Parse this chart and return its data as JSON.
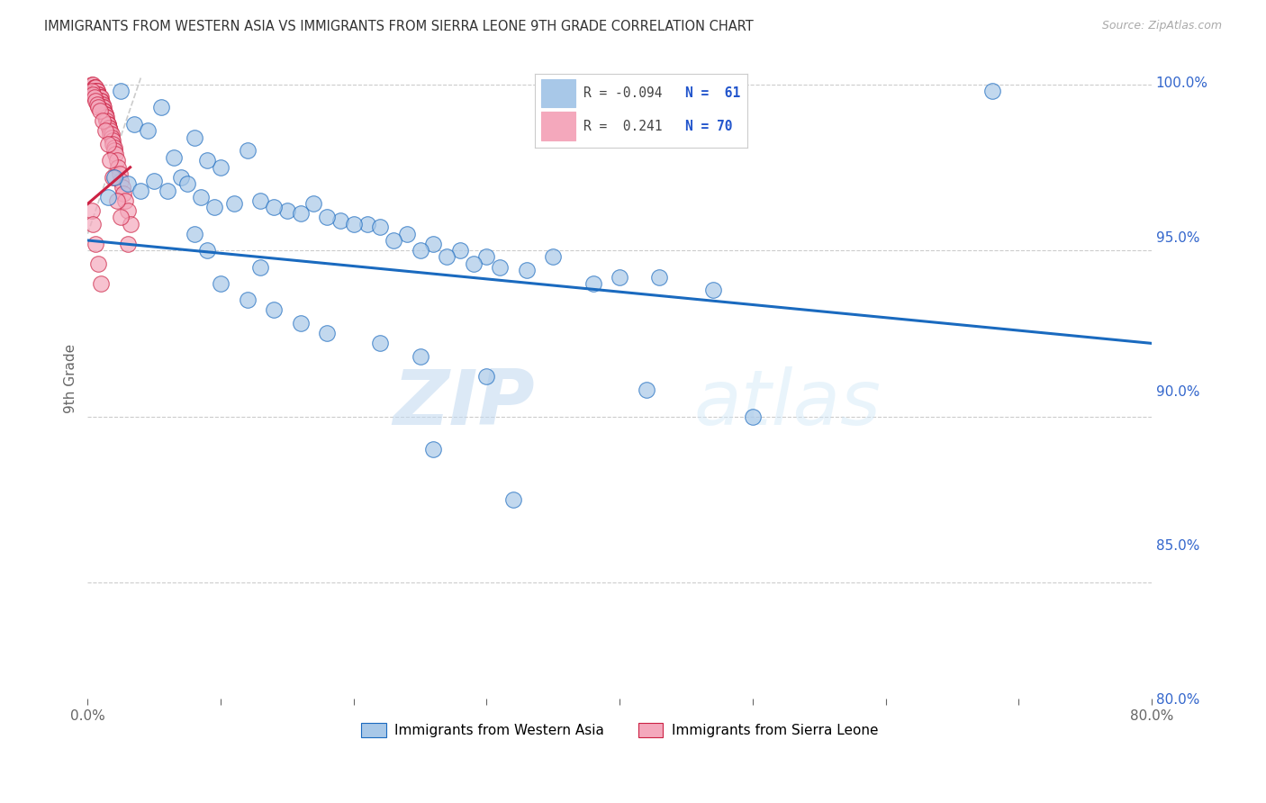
{
  "title": "IMMIGRANTS FROM WESTERN ASIA VS IMMIGRANTS FROM SIERRA LEONE 9TH GRADE CORRELATION CHART",
  "source": "Source: ZipAtlas.com",
  "ylabel": "9th Grade",
  "xlim": [
    0.0,
    0.8
  ],
  "ylim": [
    0.815,
    1.008
  ],
  "yticks": [
    0.8,
    0.85,
    0.9,
    0.95,
    1.0
  ],
  "ytick_labels": [
    "80.0%",
    "85.0%",
    "90.0%",
    "95.0%",
    "100.0%"
  ],
  "xticks": [
    0.0,
    0.1,
    0.2,
    0.3,
    0.4,
    0.5,
    0.6,
    0.7,
    0.8
  ],
  "xtick_labels": [
    "0.0%",
    "",
    "",
    "",
    "",
    "",
    "",
    "",
    "80.0%"
  ],
  "legend_blue_r": "R = -0.094",
  "legend_blue_n": "N =  61",
  "legend_pink_r": "R =  0.241",
  "legend_pink_n": "N = 70",
  "blue_color": "#a8c8e8",
  "pink_color": "#f4a8bc",
  "blue_line_color": "#1a6abf",
  "pink_line_color": "#cc2244",
  "watermark_zip": "ZIP",
  "watermark_atlas": "atlas",
  "blue_x": [
    0.025,
    0.055,
    0.035,
    0.045,
    0.08,
    0.12,
    0.1,
    0.065,
    0.09,
    0.07,
    0.03,
    0.04,
    0.02,
    0.015,
    0.05,
    0.06,
    0.075,
    0.085,
    0.095,
    0.11,
    0.13,
    0.15,
    0.17,
    0.19,
    0.21,
    0.14,
    0.16,
    0.18,
    0.2,
    0.22,
    0.24,
    0.26,
    0.28,
    0.3,
    0.23,
    0.25,
    0.27,
    0.29,
    0.31,
    0.35,
    0.33,
    0.38,
    0.4,
    0.43,
    0.47,
    0.1,
    0.12,
    0.14,
    0.16,
    0.22,
    0.25,
    0.3,
    0.42,
    0.5,
    0.68,
    0.08,
    0.09,
    0.13,
    0.18,
    0.26,
    0.32
  ],
  "blue_y": [
    0.998,
    0.993,
    0.988,
    0.986,
    0.984,
    0.98,
    0.975,
    0.978,
    0.977,
    0.972,
    0.97,
    0.968,
    0.972,
    0.966,
    0.971,
    0.968,
    0.97,
    0.966,
    0.963,
    0.964,
    0.965,
    0.962,
    0.964,
    0.959,
    0.958,
    0.963,
    0.961,
    0.96,
    0.958,
    0.957,
    0.955,
    0.952,
    0.95,
    0.948,
    0.953,
    0.95,
    0.948,
    0.946,
    0.945,
    0.948,
    0.944,
    0.94,
    0.942,
    0.942,
    0.938,
    0.94,
    0.935,
    0.932,
    0.928,
    0.922,
    0.918,
    0.912,
    0.908,
    0.9,
    0.998,
    0.955,
    0.95,
    0.945,
    0.925,
    0.89,
    0.875
  ],
  "pink_x": [
    0.003,
    0.004,
    0.005,
    0.005,
    0.006,
    0.006,
    0.007,
    0.007,
    0.007,
    0.008,
    0.008,
    0.009,
    0.009,
    0.01,
    0.01,
    0.01,
    0.01,
    0.01,
    0.011,
    0.011,
    0.012,
    0.012,
    0.012,
    0.013,
    0.013,
    0.013,
    0.014,
    0.014,
    0.015,
    0.015,
    0.016,
    0.016,
    0.017,
    0.017,
    0.018,
    0.018,
    0.019,
    0.019,
    0.02,
    0.02,
    0.021,
    0.022,
    0.023,
    0.024,
    0.025,
    0.026,
    0.027,
    0.028,
    0.03,
    0.032,
    0.003,
    0.004,
    0.005,
    0.006,
    0.007,
    0.008,
    0.009,
    0.011,
    0.013,
    0.015,
    0.017,
    0.019,
    0.022,
    0.025,
    0.03,
    0.003,
    0.004,
    0.006,
    0.008,
    0.01
  ],
  "pink_y": [
    1.0,
    1.0,
    0.999,
    0.999,
    0.999,
    0.998,
    0.998,
    0.998,
    0.997,
    0.997,
    0.997,
    0.996,
    0.996,
    0.996,
    0.995,
    0.995,
    0.994,
    0.994,
    0.994,
    0.993,
    0.993,
    0.992,
    0.992,
    0.991,
    0.991,
    0.99,
    0.99,
    0.989,
    0.988,
    0.988,
    0.987,
    0.987,
    0.986,
    0.985,
    0.985,
    0.984,
    0.983,
    0.982,
    0.981,
    0.98,
    0.979,
    0.977,
    0.975,
    0.973,
    0.971,
    0.969,
    0.967,
    0.965,
    0.962,
    0.958,
    0.998,
    0.997,
    0.996,
    0.995,
    0.994,
    0.993,
    0.992,
    0.989,
    0.986,
    0.982,
    0.977,
    0.972,
    0.965,
    0.96,
    0.952,
    0.962,
    0.958,
    0.952,
    0.946,
    0.94
  ]
}
